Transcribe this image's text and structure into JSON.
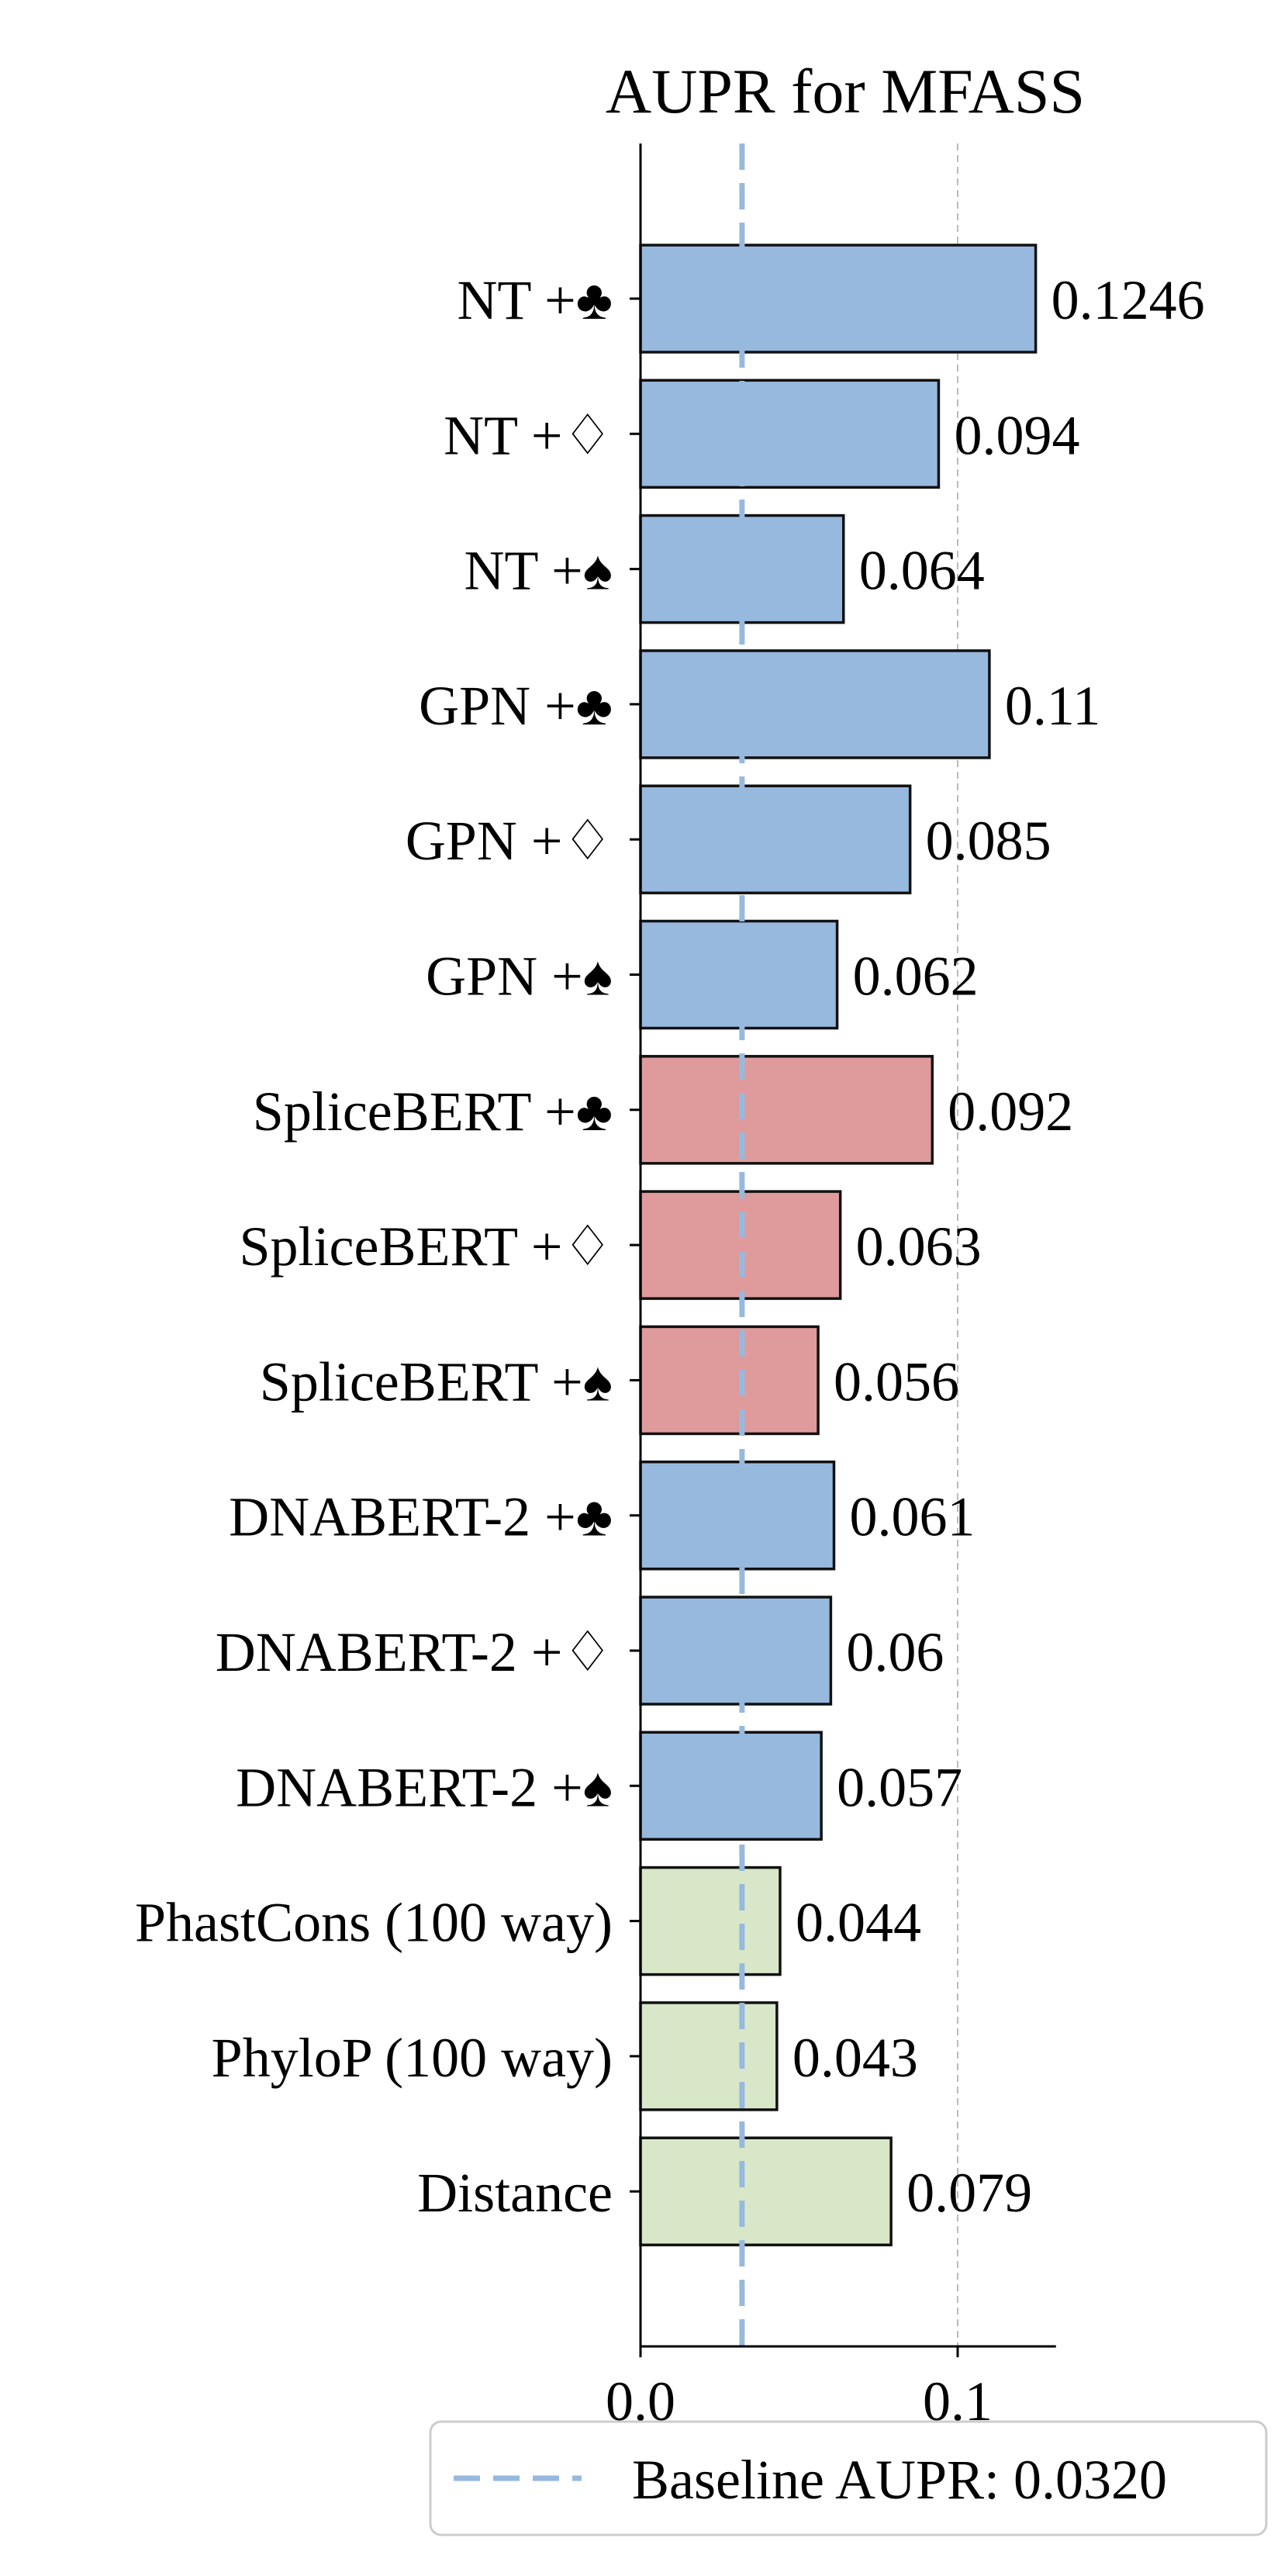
{
  "chart_data": {
    "type": "bar",
    "orientation": "horizontal",
    "title": "AUPR for MFASS",
    "xlabel": "",
    "ylabel": "",
    "xlim": [
      0.0,
      0.131
    ],
    "xticks": [
      0.0,
      0.1
    ],
    "xtick_labels": [
      "0.0",
      "0.1"
    ],
    "grid": "vertical dashed at 0.1",
    "categories": [
      "NT +♣",
      "NT +♢",
      "NT +♠",
      "GPN +♣",
      "GPN +♢",
      "GPN +♠",
      "SpliceBERT +♣",
      "SpliceBERT +♢",
      "SpliceBERT +♠",
      "DNABERT-2 +♣",
      "DNABERT-2 +♢",
      "DNABERT-2 +♠",
      "PhastCons (100 way)",
      "PhyloP (100 way)",
      "Distance"
    ],
    "values": [
      0.1246,
      0.094,
      0.064,
      0.11,
      0.085,
      0.062,
      0.092,
      0.063,
      0.056,
      0.061,
      0.06,
      0.057,
      0.044,
      0.043,
      0.079
    ],
    "value_labels": [
      "0.1246",
      "0.094",
      "0.064",
      "0.11",
      "0.085",
      "0.062",
      "0.092",
      "0.063",
      "0.056",
      "0.061",
      "0.06",
      "0.057",
      "0.044",
      "0.043",
      "0.079"
    ],
    "bar_colors": [
      "#97b9de",
      "#97b9de",
      "#97b9de",
      "#97b9de",
      "#97b9de",
      "#97b9de",
      "#df9b9b",
      "#df9b9b",
      "#df9b9b",
      "#97b9de",
      "#97b9de",
      "#97b9de",
      "#d9e7c9",
      "#d9e7c9",
      "#d9e7c9"
    ],
    "baseline": {
      "value": 0.032,
      "label": "Baseline AUPR: 0.0320",
      "color": "#97b9de",
      "style": "dashed"
    },
    "legend": {
      "placement": "bottom-right",
      "entries": [
        "Baseline AUPR: 0.0320"
      ]
    }
  }
}
